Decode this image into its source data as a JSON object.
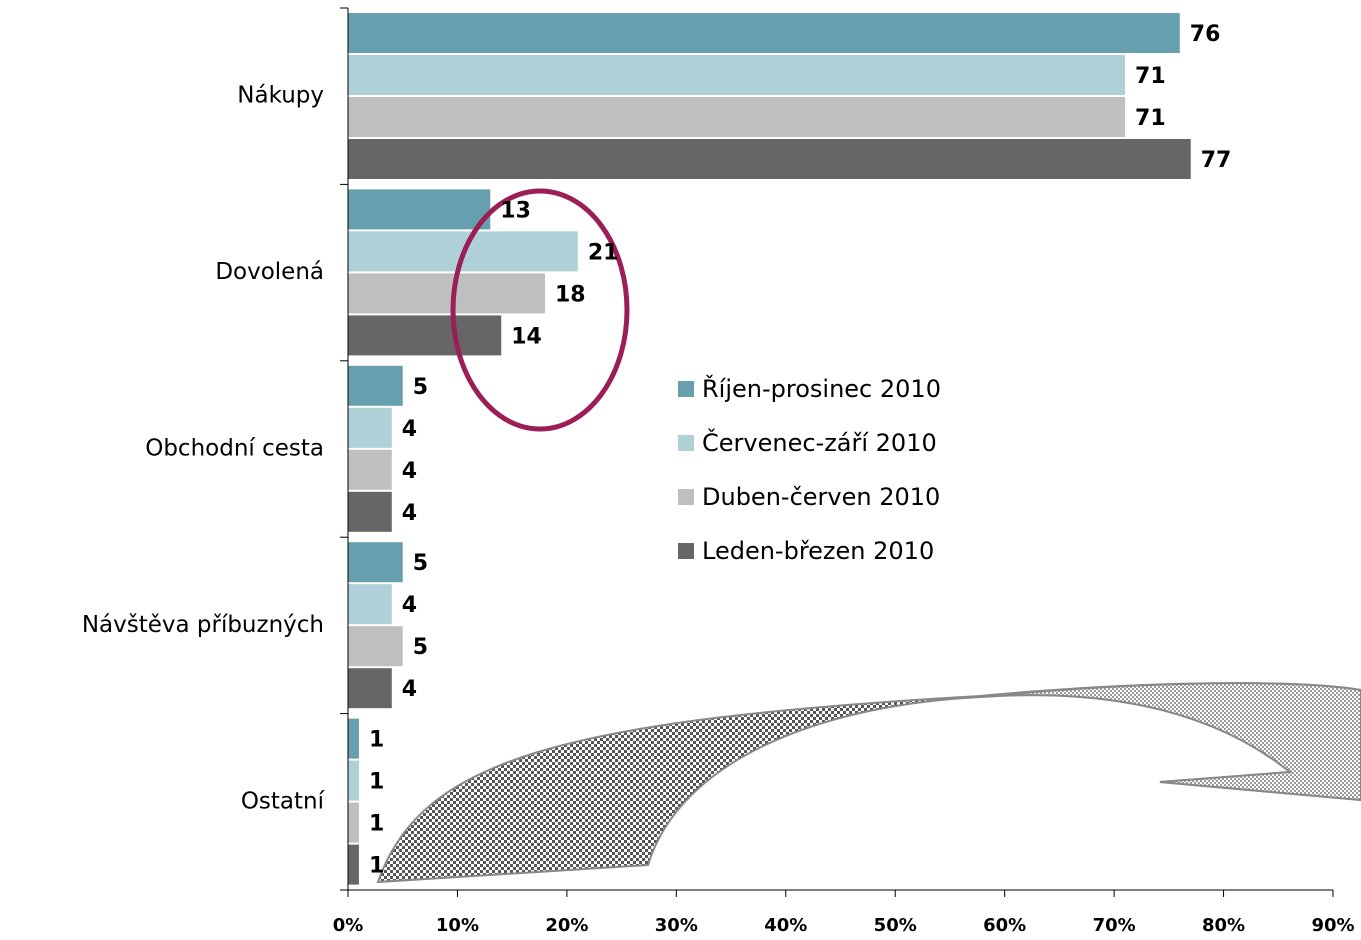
{
  "chart_data": {
    "type": "bar",
    "orientation": "horizontal",
    "categories": [
      "Nákupy",
      "Dovolená",
      "Obchodní cesta",
      "Návštěva příbuzných",
      "Ostatní"
    ],
    "series": [
      {
        "name": "Říjen-prosinec 2010",
        "color": "#669fae",
        "values": [
          76,
          13,
          5,
          5,
          1
        ]
      },
      {
        "name": "Červenec-září 2010",
        "color": "#afd0d6",
        "values": [
          71,
          21,
          4,
          4,
          1
        ]
      },
      {
        "name": "Duben-červen 2010",
        "color": "#bfbfbf",
        "values": [
          71,
          18,
          4,
          5,
          1
        ]
      },
      {
        "name": "Leden-březen 2010",
        "color": "#666666",
        "values": [
          77,
          14,
          4,
          4,
          1
        ]
      }
    ],
    "xlim": [
      0,
      90
    ],
    "xticks": [
      {
        "value": 0,
        "label": "0%"
      },
      {
        "value": 10,
        "label": "10%"
      },
      {
        "value": 20,
        "label": "20%"
      },
      {
        "value": 30,
        "label": "30%"
      },
      {
        "value": 40,
        "label": "40%"
      },
      {
        "value": 50,
        "label": "50%"
      },
      {
        "value": 60,
        "label": "60%"
      },
      {
        "value": 70,
        "label": "70%"
      },
      {
        "value": 80,
        "label": "80%"
      },
      {
        "value": 90,
        "label": "90%"
      }
    ],
    "grid": false
  }
}
